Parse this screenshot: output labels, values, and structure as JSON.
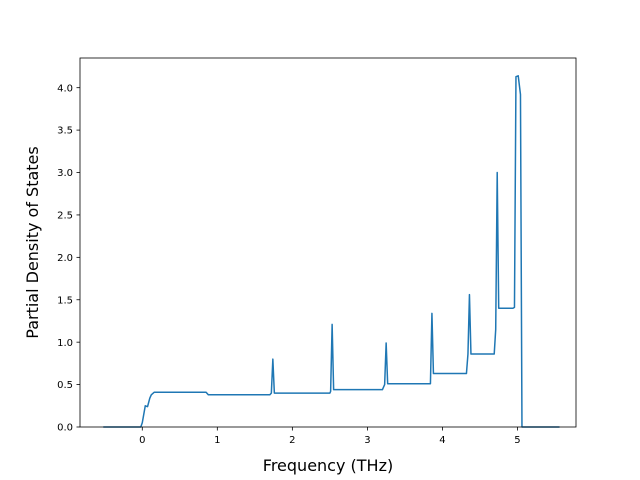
{
  "chart_data": {
    "type": "line",
    "title": "",
    "xlabel": "Frequency (THz)",
    "ylabel": "Partial Density of States",
    "xlim": [
      -0.83,
      5.78
    ],
    "ylim": [
      0.0,
      4.35
    ],
    "xticks": [
      0,
      1,
      2,
      3,
      4,
      5
    ],
    "yticks": [
      0.0,
      0.5,
      1.0,
      1.5,
      2.0,
      2.5,
      3.0,
      3.5,
      4.0
    ],
    "ytick_labels": [
      "0.0",
      "0.5",
      "1.0",
      "1.5",
      "2.0",
      "2.5",
      "3.0",
      "3.5",
      "4.0"
    ],
    "grid": false,
    "legend": "none",
    "series": [
      {
        "color": "#1f77b4",
        "x": [
          -0.52,
          -0.02,
          0.0,
          0.04,
          0.07,
          0.1,
          0.12,
          0.16,
          0.2,
          0.85,
          0.88,
          1.7,
          1.72,
          1.74,
          1.76,
          2.5,
          2.51,
          2.53,
          2.55,
          3.2,
          3.23,
          3.25,
          3.27,
          3.84,
          3.86,
          3.88,
          4.32,
          4.34,
          4.36,
          4.38,
          4.69,
          4.71,
          4.73,
          4.75,
          4.94,
          4.96,
          4.98,
          5.01,
          5.04,
          5.06,
          5.56
        ],
        "y": [
          0.0,
          0.0,
          0.05,
          0.25,
          0.24,
          0.34,
          0.38,
          0.41,
          0.41,
          0.41,
          0.38,
          0.38,
          0.4,
          0.8,
          0.4,
          0.4,
          0.42,
          1.21,
          0.44,
          0.44,
          0.5,
          0.99,
          0.51,
          0.51,
          1.34,
          0.63,
          0.63,
          0.86,
          1.56,
          0.86,
          0.86,
          1.15,
          3.0,
          1.4,
          1.4,
          1.41,
          4.13,
          4.14,
          3.92,
          0.0,
          0.0
        ]
      }
    ]
  }
}
